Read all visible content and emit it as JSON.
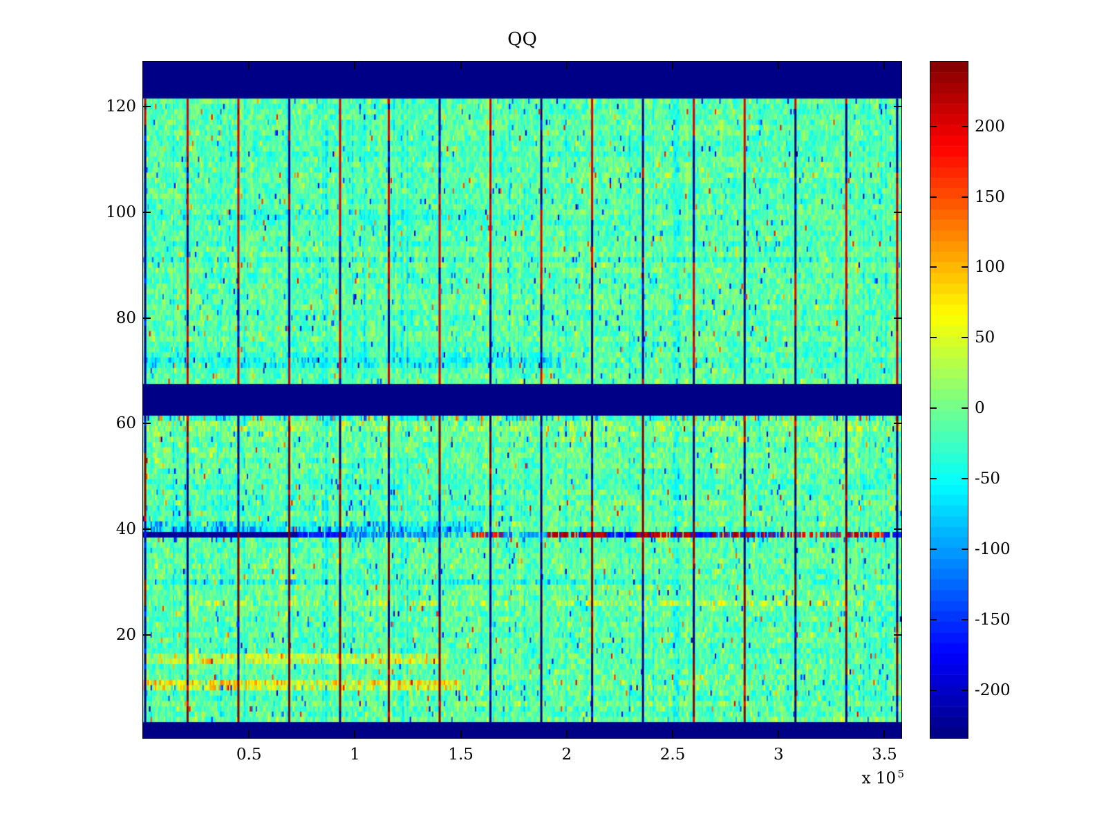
{
  "figure": {
    "background": "#ffffff"
  },
  "chart_data": {
    "type": "heatmap",
    "title": "QQ",
    "xlabel": "",
    "ylabel": "",
    "x_axis_exponent": {
      "prefix": "x 10",
      "exp": "5"
    },
    "x_ticks": [
      {
        "label": "0.5",
        "value": 0.5
      },
      {
        "label": "1",
        "value": 1.0
      },
      {
        "label": "1.5",
        "value": 1.5
      },
      {
        "label": "2",
        "value": 2.0
      },
      {
        "label": "2.5",
        "value": 2.5
      },
      {
        "label": "3",
        "value": 3.0
      },
      {
        "label": "3.5",
        "value": 3.5
      }
    ],
    "y_ticks": [
      {
        "label": "20",
        "value": 20
      },
      {
        "label": "40",
        "value": 40
      },
      {
        "label": "60",
        "value": 60
      },
      {
        "label": "80",
        "value": 80
      },
      {
        "label": "100",
        "value": 100
      },
      {
        "label": "120",
        "value": 120
      }
    ],
    "xlim_e5": [
      0,
      3.58
    ],
    "ylim_rows": [
      0.5,
      128.5
    ],
    "n_rows": 128,
    "clim": [
      -234,
      246
    ],
    "colormap": "jet",
    "colormap_levels": 64,
    "grid": false,
    "colorbar": {
      "position": "right",
      "ticks": [
        {
          "label": "200",
          "value": 200
        },
        {
          "label": "150",
          "value": 150
        },
        {
          "label": "100",
          "value": 100
        },
        {
          "label": "50",
          "value": 50
        },
        {
          "label": "0",
          "value": 0
        },
        {
          "label": "-50",
          "value": -50
        },
        {
          "label": "-100",
          "value": -100
        },
        {
          "label": "-150",
          "value": -150
        },
        {
          "label": "-200",
          "value": -200
        }
      ]
    },
    "navy_bands_rows": [
      [
        122,
        128
      ],
      [
        62,
        67
      ],
      [
        1,
        3
      ]
    ],
    "vertical_lines_x_e5": [
      0.01,
      0.21,
      0.45,
      0.69,
      0.93,
      1.16,
      1.4,
      1.64,
      1.88,
      2.12,
      2.36,
      2.6,
      2.84,
      3.08,
      3.32,
      3.56
    ],
    "blocks_rows": [
      [
        4,
        61
      ],
      [
        68,
        121
      ]
    ],
    "special_row": {
      "row": 39,
      "segments": [
        {
          "f0": 0.0,
          "f1": 0.205,
          "c": "deep"
        },
        {
          "f0": 0.205,
          "f1": 0.27,
          "c": "blue"
        },
        {
          "f0": 0.27,
          "f1": 0.385,
          "c": "bluecyan"
        },
        {
          "f0": 0.385,
          "f1": 0.435,
          "c": "mix_gb"
        },
        {
          "f0": 0.435,
          "f1": 0.475,
          "c": "orangered"
        },
        {
          "f0": 0.475,
          "f1": 0.535,
          "c": "bluecyan"
        },
        {
          "f0": 0.535,
          "f1": 0.61,
          "c": "red"
        },
        {
          "f0": 0.61,
          "f1": 0.65,
          "c": "blue"
        },
        {
          "f0": 0.65,
          "f1": 0.73,
          "c": "red"
        },
        {
          "f0": 0.73,
          "f1": 0.75,
          "c": "blue"
        },
        {
          "f0": 0.75,
          "f1": 0.815,
          "c": "redblue"
        },
        {
          "f0": 0.815,
          "f1": 0.98,
          "c": "redorange"
        },
        {
          "f0": 0.98,
          "f1": 1.0,
          "c": "blue"
        }
      ]
    },
    "row_features": [
      {
        "row": 10,
        "f0": 0.0,
        "f1": 0.42,
        "bias": 40,
        "p": 0.45,
        "pv": 60
      },
      {
        "row": 10,
        "f0": 0.42,
        "f1": 0.85,
        "bias": 0,
        "p": 0.12,
        "pv": 70
      },
      {
        "row": 11,
        "f0": 0.0,
        "f1": 0.42,
        "bias": 45,
        "p": 0.5,
        "pv": 65
      },
      {
        "row": 11,
        "f0": 0.42,
        "f1": 0.85,
        "bias": 0,
        "p": 0.1,
        "pv": 65
      },
      {
        "row": 15,
        "f0": 0.0,
        "f1": 0.4,
        "bias": 35,
        "p": 0.4,
        "pv": 55
      },
      {
        "row": 16,
        "f0": 0.0,
        "f1": 0.4,
        "bias": 30,
        "p": 0.35,
        "pv": 50
      },
      {
        "row": 26,
        "f0": 0.05,
        "f1": 0.95,
        "bias": 8,
        "p": 0.35,
        "pv": 60
      },
      {
        "row": 30,
        "f0": 0.0,
        "f1": 0.7,
        "bias": -14,
        "p": 0.1,
        "pv": -60
      },
      {
        "row": 38,
        "f0": 0.0,
        "f1": 1.0,
        "bias": 0,
        "p": 0.05,
        "pv": -120
      },
      {
        "row": 40,
        "f0": 0.0,
        "f1": 0.45,
        "bias": -38,
        "p": 0.25,
        "pv": -70
      },
      {
        "row": 41,
        "f0": 0.0,
        "f1": 0.45,
        "bias": -30,
        "p": 0.2,
        "pv": -60
      },
      {
        "row": 44,
        "f0": 0.0,
        "f1": 0.5,
        "bias": -18,
        "p": 0.1,
        "pv": -50
      },
      {
        "row": 45,
        "f0": 0.0,
        "f1": 0.5,
        "bias": -15,
        "p": 0.08,
        "pv": -45
      },
      {
        "row": 57,
        "f0": 0.0,
        "f1": 1.0,
        "bias": 5,
        "p": 0.12,
        "pv": 45
      },
      {
        "row": 59,
        "f0": 0.0,
        "f1": 1.0,
        "bias": 6,
        "p": 0.28,
        "pv": 55
      },
      {
        "row": 60,
        "f0": 0.0,
        "f1": 1.0,
        "bias": 4,
        "p": 0.2,
        "pv": 50
      },
      {
        "row": 61,
        "f0": 0.0,
        "f1": 1.0,
        "bias": -6,
        "p": 0.15,
        "pv": -80
      },
      {
        "row": 61,
        "f0": 0.0,
        "f1": 1.0,
        "bias": 0,
        "p": 0.08,
        "pv": 130
      },
      {
        "row": 71,
        "f0": 0.0,
        "f1": 0.55,
        "bias": -20,
        "p": 0.1,
        "pv": -50
      },
      {
        "row": 72,
        "f0": 0.0,
        "f1": 0.55,
        "bias": -20,
        "p": 0.1,
        "pv": -50
      },
      {
        "row": 73,
        "f0": 0.0,
        "f1": 0.55,
        "bias": -16,
        "p": 0.08,
        "pv": -45
      },
      {
        "row": 91,
        "f0": 0.0,
        "f1": 1.0,
        "bias": -14,
        "p": 0.08,
        "pv": -55
      },
      {
        "row": 99,
        "f0": 0.0,
        "f1": 0.5,
        "bias": -16,
        "p": 0.08,
        "pv": -50
      },
      {
        "row": 100,
        "f0": 0.0,
        "f1": 0.5,
        "bias": -12,
        "p": 0.06,
        "pv": -45
      }
    ],
    "noise": {
      "seed": 11,
      "nx": 512,
      "ny": 128,
      "mean": -14,
      "spread": 62
    },
    "colors": {
      "navy_band": "#000086",
      "line_red_bright": 205,
      "line_red_dark": 243,
      "line_navy": -230,
      "axis": "#000000",
      "background": "#ffffff"
    }
  }
}
